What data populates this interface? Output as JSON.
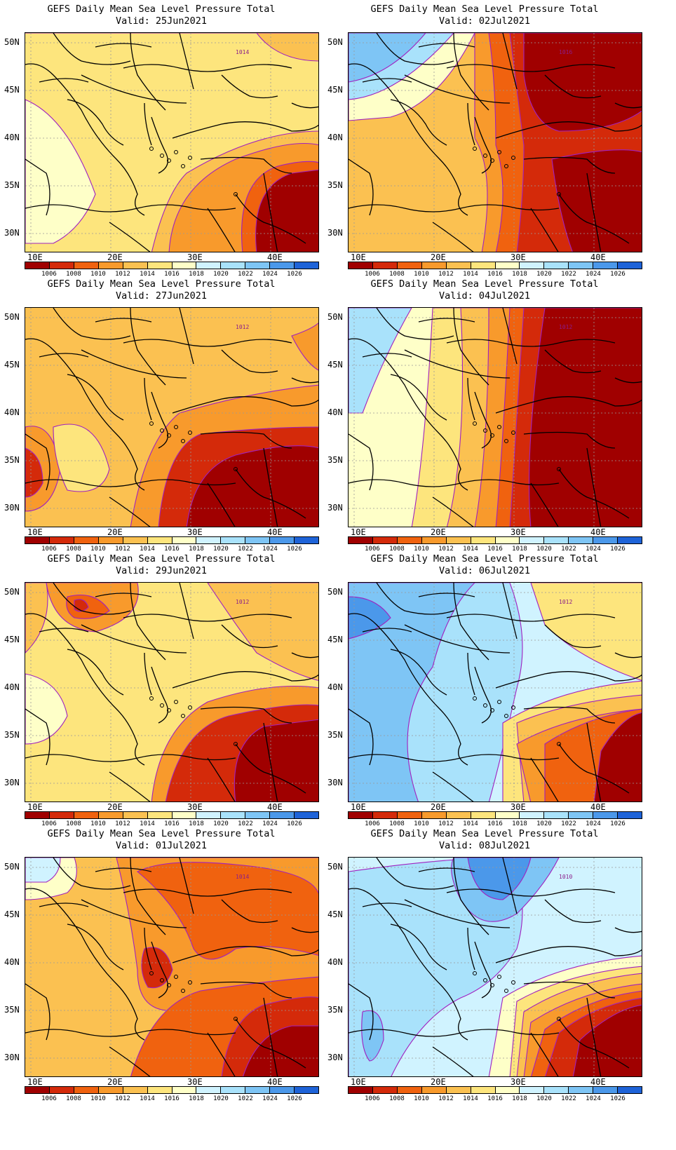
{
  "title_text": "GEFS Daily Mean Sea Level Pressure Total",
  "panels": [
    {
      "valid": "Valid: 25Jun2021",
      "scheme": "a",
      "contour_label": "1014"
    },
    {
      "valid": "Valid: 02Jul2021",
      "scheme": "e",
      "contour_label": "1016"
    },
    {
      "valid": "Valid: 27Jun2021",
      "scheme": "b",
      "contour_label": "1012"
    },
    {
      "valid": "Valid: 04Jul2021",
      "scheme": "f",
      "contour_label": "1012"
    },
    {
      "valid": "Valid: 29Jun2021",
      "scheme": "c",
      "contour_label": "1012"
    },
    {
      "valid": "Valid: 06Jul2021",
      "scheme": "g",
      "contour_label": "1012"
    },
    {
      "valid": "Valid: 01Jul2021",
      "scheme": "d",
      "contour_label": "1014"
    },
    {
      "valid": "Valid: 08Jul2021",
      "scheme": "h",
      "contour_label": "1010"
    }
  ],
  "lat_labels": [
    "50N",
    "45N",
    "40N",
    "35N",
    "30N"
  ],
  "lon_labels": [
    "10E",
    "20E",
    "30E",
    "40E"
  ],
  "colorbar": {
    "labels": [
      "1006",
      "1008",
      "1010",
      "1012",
      "1014",
      "1016",
      "1018",
      "1020",
      "1022",
      "1024",
      "1026"
    ],
    "colors": [
      "#a00000",
      "#d42a0a",
      "#f0620f",
      "#f89a2c",
      "#fbc151",
      "#fde57d",
      "#feffc8",
      "#d0f3ff",
      "#a9e2fb",
      "#7ec5f5",
      "#4b98ea",
      "#1e63d8"
    ]
  }
}
